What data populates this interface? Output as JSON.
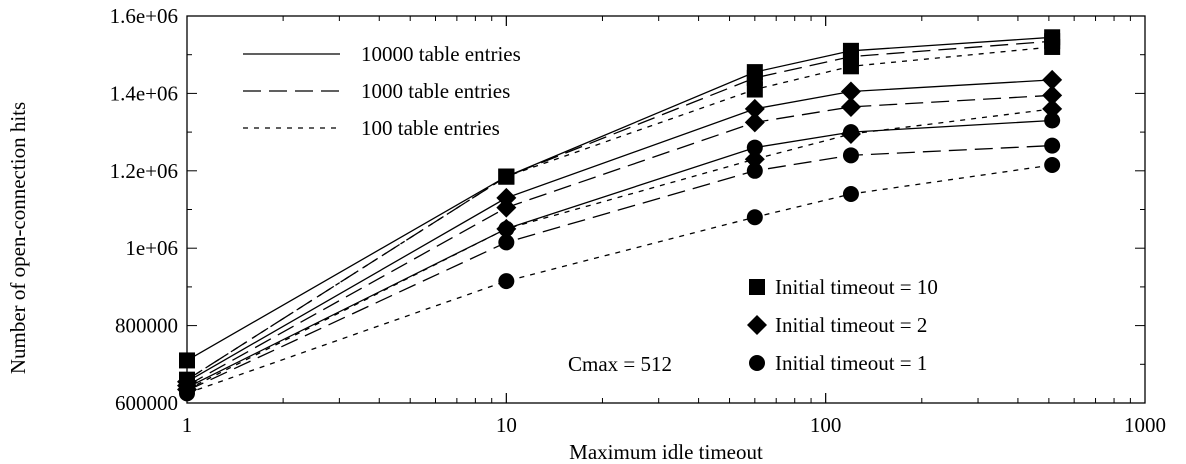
{
  "chart_data": {
    "type": "line",
    "xlabel": "Maximum idle timeout",
    "ylabel": "Number of open-connection hits",
    "xscale": "log",
    "xlim": [
      1,
      1000
    ],
    "ylim": [
      600000,
      1600000
    ],
    "x_ticks": [
      1,
      10,
      100,
      1000
    ],
    "x_tick_labels": [
      "1",
      "10",
      "100",
      "1000"
    ],
    "y_ticks": [
      600000,
      800000,
      1000000,
      1200000,
      1400000,
      1600000
    ],
    "y_tick_labels": [
      "600000",
      "800000",
      "1e+06",
      "1.2e+06",
      "1.4e+06",
      "1.6e+06"
    ],
    "grid": false,
    "annotation": "Cmax = 512",
    "line_legend": [
      {
        "label": "10000 table entries",
        "dash": "solid"
      },
      {
        "label": "1000 table entries",
        "dash": "dashed"
      },
      {
        "label": "100 table entries",
        "dash": "dotted"
      }
    ],
    "marker_legend": [
      {
        "label": "Initial timeout = 10",
        "marker": "square"
      },
      {
        "label": "Initial timeout = 2",
        "marker": "diamond"
      },
      {
        "label": "Initial timeout = 1",
        "marker": "circle"
      }
    ],
    "legend_position": "top-left (line styles), bottom-right (markers)",
    "x": [
      1,
      10,
      60,
      120,
      512
    ],
    "series": [
      {
        "entries": "10000",
        "initial_timeout": 10,
        "dash": "solid",
        "marker": "square",
        "values": [
          710000,
          1185000,
          1455000,
          1510000,
          1545000
        ]
      },
      {
        "entries": "1000",
        "initial_timeout": 10,
        "dash": "dashed",
        "marker": "square",
        "values": [
          660000,
          1185000,
          1440000,
          1495000,
          1535000
        ]
      },
      {
        "entries": "100",
        "initial_timeout": 10,
        "dash": "dotted",
        "marker": "square",
        "values": [
          660000,
          1185000,
          1410000,
          1470000,
          1520000
        ]
      },
      {
        "entries": "10000",
        "initial_timeout": 2,
        "dash": "solid",
        "marker": "diamond",
        "values": [
          655000,
          1130000,
          1360000,
          1405000,
          1435000
        ]
      },
      {
        "entries": "1000",
        "initial_timeout": 2,
        "dash": "dashed",
        "marker": "diamond",
        "values": [
          645000,
          1105000,
          1325000,
          1365000,
          1395000
        ]
      },
      {
        "entries": "100",
        "initial_timeout": 2,
        "dash": "dotted",
        "marker": "diamond",
        "values": [
          635000,
          1050000,
          1230000,
          1295000,
          1360000
        ]
      },
      {
        "entries": "10000",
        "initial_timeout": 1,
        "dash": "solid",
        "marker": "circle",
        "values": [
          640000,
          1050000,
          1260000,
          1300000,
          1330000
        ]
      },
      {
        "entries": "1000",
        "initial_timeout": 1,
        "dash": "dashed",
        "marker": "circle",
        "values": [
          632000,
          1015000,
          1200000,
          1240000,
          1265000
        ]
      },
      {
        "entries": "100",
        "initial_timeout": 1,
        "dash": "dotted",
        "marker": "circle",
        "values": [
          625000,
          915000,
          1080000,
          1140000,
          1215000
        ]
      }
    ]
  }
}
